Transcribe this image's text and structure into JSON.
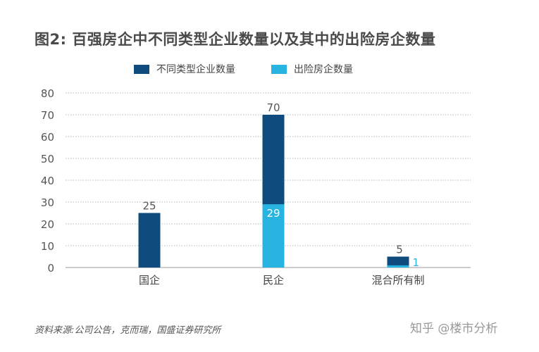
{
  "title": "图2: 百强房企中不同类型企业数量以及其中的出险房企数量",
  "chart_data": {
    "type": "bar",
    "categories": [
      "国企",
      "民企",
      "混合所有制"
    ],
    "series": [
      {
        "name": "不同类型企业数量",
        "values": [
          25,
          70,
          5
        ],
        "color": "#104b7d"
      },
      {
        "name": "出险房企数量",
        "values": [
          null,
          29,
          1
        ],
        "color": "#27b4e0"
      }
    ],
    "data_labels": [
      {
        "series": 0,
        "category": 0,
        "text": "25"
      },
      {
        "series": 0,
        "category": 1,
        "text": "70"
      },
      {
        "series": 0,
        "category": 2,
        "text": "5"
      },
      {
        "series": 1,
        "category": 1,
        "text": "29"
      },
      {
        "series": 1,
        "category": 2,
        "text": "1"
      }
    ],
    "yticks": [
      "0",
      "10",
      "20",
      "30",
      "40",
      "50",
      "60",
      "70",
      "80"
    ],
    "ylim": [
      0,
      80
    ],
    "grid": true,
    "legend": "top-center"
  },
  "source": "资料来源:公司公告，克而瑞，国盛证券研究所",
  "watermark": "知乎 @楼市分析"
}
